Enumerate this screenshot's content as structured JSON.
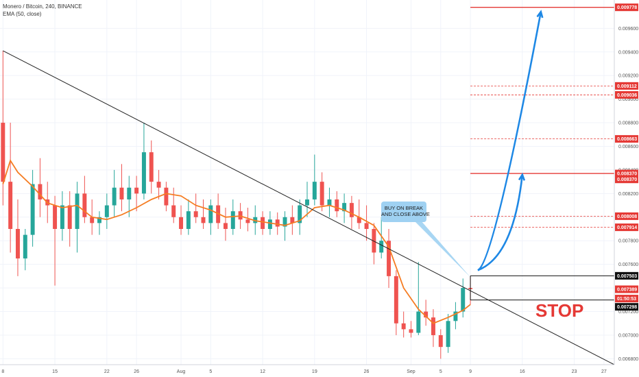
{
  "legend": {
    "symbol_line": "Monero / Bitcoin, 240, BINANCE",
    "indicator_line": "EMA (50, close)"
  },
  "annotations": {
    "callout_line1": "BUY ON BREAK",
    "callout_line2": "AND CLOSE ABOVE",
    "stop_label": "STOP"
  },
  "colors": {
    "candle_up": "#26a69a",
    "candle_down": "#ef5350",
    "ema": "#f57c22",
    "level_red": "#e53935",
    "arrow": "#1e88e5",
    "trendline": "#222222",
    "callout_bg": "#9fd1f2"
  },
  "chart_data": {
    "type": "candlestick",
    "symbol": "Monero / Bitcoin",
    "interval": "240",
    "exchange": "BINANCE",
    "indicator": "EMA (50, close)",
    "x_axis_ticks": [
      "8",
      "15",
      "22",
      "26",
      "Aug",
      "5",
      "12",
      "19",
      "26",
      "Sep",
      "5",
      "9",
      "16",
      "23",
      "27"
    ],
    "x_tick_days": [
      0,
      7,
      14,
      18,
      24,
      28,
      35,
      42,
      49,
      55,
      59,
      63,
      70,
      77,
      81
    ],
    "x_range_days": [
      -0.4,
      82.4
    ],
    "y_axis_ticks": [
      "0.006800",
      "0.007000",
      "0.007200",
      "0.007400",
      "0.007600",
      "0.007800",
      "0.008000",
      "0.008200",
      "0.008400",
      "0.008600",
      "0.008800",
      "0.009000",
      "0.009200",
      "0.009400",
      "0.009600"
    ],
    "ylim": [
      0.00675,
      0.00984
    ],
    "trendline": {
      "start": {
        "day": 0,
        "price": 0.00941
      },
      "end": {
        "day": 82.4,
        "price": 0.00675
      }
    },
    "ema_points": [
      {
        "day": 0,
        "price": 0.00828
      },
      {
        "day": 1,
        "price": 0.00848
      },
      {
        "day": 2,
        "price": 0.00838
      },
      {
        "day": 4,
        "price": 0.00826
      },
      {
        "day": 6,
        "price": 0.00812
      },
      {
        "day": 8,
        "price": 0.00808
      },
      {
        "day": 10,
        "price": 0.0081
      },
      {
        "day": 12,
        "price": 0.008
      },
      {
        "day": 14,
        "price": 0.00798
      },
      {
        "day": 16,
        "price": 0.00802
      },
      {
        "day": 18,
        "price": 0.00808
      },
      {
        "day": 20,
        "price": 0.00815
      },
      {
        "day": 22,
        "price": 0.0082
      },
      {
        "day": 24,
        "price": 0.00818
      },
      {
        "day": 26,
        "price": 0.0081
      },
      {
        "day": 28,
        "price": 0.00806
      },
      {
        "day": 30,
        "price": 0.008
      },
      {
        "day": 32,
        "price": 0.00801
      },
      {
        "day": 34,
        "price": 0.00797
      },
      {
        "day": 36,
        "price": 0.00795
      },
      {
        "day": 38,
        "price": 0.00793
      },
      {
        "day": 40,
        "price": 0.00797
      },
      {
        "day": 42,
        "price": 0.00808
      },
      {
        "day": 44,
        "price": 0.0081
      },
      {
        "day": 46,
        "price": 0.00806
      },
      {
        "day": 48,
        "price": 0.008
      },
      {
        "day": 50,
        "price": 0.00793
      },
      {
        "day": 52,
        "price": 0.00775
      },
      {
        "day": 54,
        "price": 0.0074
      },
      {
        "day": 56,
        "price": 0.00722
      },
      {
        "day": 58,
        "price": 0.0071
      },
      {
        "day": 60,
        "price": 0.00715
      },
      {
        "day": 62,
        "price": 0.00721
      },
      {
        "day": 63,
        "price": 0.00726
      }
    ],
    "candles_summary": "Daily OHLC reconstructed from the 240-minute chart visually",
    "candles": [
      {
        "day": 0,
        "o": 0.0088,
        "h": 0.00941,
        "l": 0.0081,
        "c": 0.0083
      },
      {
        "day": 1,
        "o": 0.0083,
        "h": 0.0088,
        "l": 0.0077,
        "c": 0.0079
      },
      {
        "day": 2,
        "o": 0.0079,
        "h": 0.00815,
        "l": 0.0075,
        "c": 0.00765
      },
      {
        "day": 3,
        "o": 0.00765,
        "h": 0.0079,
        "l": 0.00755,
        "c": 0.00785
      },
      {
        "day": 4,
        "o": 0.00785,
        "h": 0.0084,
        "l": 0.00775,
        "c": 0.00828
      },
      {
        "day": 5,
        "o": 0.00828,
        "h": 0.0085,
        "l": 0.008,
        "c": 0.00815
      },
      {
        "day": 6,
        "o": 0.00815,
        "h": 0.0083,
        "l": 0.00795,
        "c": 0.0081
      },
      {
        "day": 7,
        "o": 0.0081,
        "h": 0.00818,
        "l": 0.00742,
        "c": 0.0079
      },
      {
        "day": 8,
        "o": 0.0079,
        "h": 0.00822,
        "l": 0.0078,
        "c": 0.0081
      },
      {
        "day": 9,
        "o": 0.0081,
        "h": 0.00822,
        "l": 0.00775,
        "c": 0.0079
      },
      {
        "day": 10,
        "o": 0.0079,
        "h": 0.0083,
        "l": 0.0077,
        "c": 0.0082
      },
      {
        "day": 11,
        "o": 0.0082,
        "h": 0.00835,
        "l": 0.00795,
        "c": 0.008
      },
      {
        "day": 12,
        "o": 0.008,
        "h": 0.00815,
        "l": 0.00785,
        "c": 0.00795
      },
      {
        "day": 13,
        "o": 0.00795,
        "h": 0.00805,
        "l": 0.00785,
        "c": 0.008
      },
      {
        "day": 14,
        "o": 0.008,
        "h": 0.0082,
        "l": 0.0079,
        "c": 0.0081
      },
      {
        "day": 15,
        "o": 0.0081,
        "h": 0.0084,
        "l": 0.008,
        "c": 0.00825
      },
      {
        "day": 16,
        "o": 0.00825,
        "h": 0.00845,
        "l": 0.00805,
        "c": 0.00815
      },
      {
        "day": 17,
        "o": 0.00815,
        "h": 0.00835,
        "l": 0.008,
        "c": 0.00825
      },
      {
        "day": 18,
        "o": 0.00825,
        "h": 0.00835,
        "l": 0.00805,
        "c": 0.0082
      },
      {
        "day": 19,
        "o": 0.0082,
        "h": 0.0088,
        "l": 0.00815,
        "c": 0.00855
      },
      {
        "day": 20,
        "o": 0.00855,
        "h": 0.00865,
        "l": 0.0082,
        "c": 0.0083
      },
      {
        "day": 21,
        "o": 0.0083,
        "h": 0.0084,
        "l": 0.00815,
        "c": 0.00825
      },
      {
        "day": 22,
        "o": 0.00825,
        "h": 0.0083,
        "l": 0.00805,
        "c": 0.0081
      },
      {
        "day": 23,
        "o": 0.0081,
        "h": 0.00825,
        "l": 0.00795,
        "c": 0.008
      },
      {
        "day": 24,
        "o": 0.008,
        "h": 0.0081,
        "l": 0.00785,
        "c": 0.0079
      },
      {
        "day": 25,
        "o": 0.0079,
        "h": 0.00815,
        "l": 0.00785,
        "c": 0.00805
      },
      {
        "day": 26,
        "o": 0.00805,
        "h": 0.0082,
        "l": 0.00795,
        "c": 0.008
      },
      {
        "day": 27,
        "o": 0.008,
        "h": 0.00815,
        "l": 0.0079,
        "c": 0.00795
      },
      {
        "day": 28,
        "o": 0.00795,
        "h": 0.00815,
        "l": 0.00785,
        "c": 0.0081
      },
      {
        "day": 29,
        "o": 0.0081,
        "h": 0.0082,
        "l": 0.0079,
        "c": 0.00795
      },
      {
        "day": 30,
        "o": 0.00795,
        "h": 0.00808,
        "l": 0.0078,
        "c": 0.0079
      },
      {
        "day": 31,
        "o": 0.0079,
        "h": 0.00815,
        "l": 0.00785,
        "c": 0.00805
      },
      {
        "day": 32,
        "o": 0.00805,
        "h": 0.00812,
        "l": 0.0079,
        "c": 0.00798
      },
      {
        "day": 33,
        "o": 0.00798,
        "h": 0.00808,
        "l": 0.00788,
        "c": 0.00795
      },
      {
        "day": 34,
        "o": 0.00795,
        "h": 0.0081,
        "l": 0.00785,
        "c": 0.008
      },
      {
        "day": 35,
        "o": 0.008,
        "h": 0.00805,
        "l": 0.00785,
        "c": 0.0079
      },
      {
        "day": 36,
        "o": 0.0079,
        "h": 0.00805,
        "l": 0.00785,
        "c": 0.00798
      },
      {
        "day": 37,
        "o": 0.00798,
        "h": 0.00804,
        "l": 0.00785,
        "c": 0.00792
      },
      {
        "day": 38,
        "o": 0.00792,
        "h": 0.00805,
        "l": 0.0078,
        "c": 0.008
      },
      {
        "day": 39,
        "o": 0.008,
        "h": 0.0081,
        "l": 0.00785,
        "c": 0.00795
      },
      {
        "day": 40,
        "o": 0.00795,
        "h": 0.00815,
        "l": 0.00785,
        "c": 0.0081
      },
      {
        "day": 41,
        "o": 0.0081,
        "h": 0.0083,
        "l": 0.008,
        "c": 0.00815
      },
      {
        "day": 42,
        "o": 0.00815,
        "h": 0.00853,
        "l": 0.0081,
        "c": 0.0083
      },
      {
        "day": 43,
        "o": 0.0083,
        "h": 0.00838,
        "l": 0.00805,
        "c": 0.0081
      },
      {
        "day": 44,
        "o": 0.0081,
        "h": 0.00825,
        "l": 0.008,
        "c": 0.00815
      },
      {
        "day": 45,
        "o": 0.00815,
        "h": 0.00822,
        "l": 0.008,
        "c": 0.00805
      },
      {
        "day": 46,
        "o": 0.00805,
        "h": 0.0082,
        "l": 0.00795,
        "c": 0.00812
      },
      {
        "day": 47,
        "o": 0.00812,
        "h": 0.00818,
        "l": 0.0079,
        "c": 0.008
      },
      {
        "day": 48,
        "o": 0.008,
        "h": 0.00815,
        "l": 0.0079,
        "c": 0.00795
      },
      {
        "day": 49,
        "o": 0.00795,
        "h": 0.0081,
        "l": 0.0078,
        "c": 0.0079
      },
      {
        "day": 50,
        "o": 0.0079,
        "h": 0.00795,
        "l": 0.0076,
        "c": 0.0077
      },
      {
        "day": 51,
        "o": 0.0077,
        "h": 0.008,
        "l": 0.00765,
        "c": 0.0078
      },
      {
        "day": 52,
        "o": 0.0078,
        "h": 0.0079,
        "l": 0.0074,
        "c": 0.0075
      },
      {
        "day": 53,
        "o": 0.0075,
        "h": 0.00755,
        "l": 0.007,
        "c": 0.0071
      },
      {
        "day": 54,
        "o": 0.0071,
        "h": 0.0072,
        "l": 0.00698,
        "c": 0.00705
      },
      {
        "day": 55,
        "o": 0.00705,
        "h": 0.00712,
        "l": 0.00698,
        "c": 0.00702
      },
      {
        "day": 56,
        "o": 0.00702,
        "h": 0.00762,
        "l": 0.007,
        "c": 0.0072
      },
      {
        "day": 57,
        "o": 0.0072,
        "h": 0.0073,
        "l": 0.00708,
        "c": 0.00715
      },
      {
        "day": 58,
        "o": 0.00715,
        "h": 0.00722,
        "l": 0.0069,
        "c": 0.007
      },
      {
        "day": 59,
        "o": 0.007,
        "h": 0.00705,
        "l": 0.0068,
        "c": 0.0069
      },
      {
        "day": 60,
        "o": 0.0069,
        "h": 0.00718,
        "l": 0.00685,
        "c": 0.00712
      },
      {
        "day": 61,
        "o": 0.00712,
        "h": 0.00728,
        "l": 0.00705,
        "c": 0.0072
      },
      {
        "day": 62,
        "o": 0.0072,
        "h": 0.00748,
        "l": 0.00715,
        "c": 0.0074
      },
      {
        "day": 63,
        "o": 0.0074,
        "h": 0.0075,
        "l": 0.00726,
        "c": 0.00739
      }
    ],
    "price_levels": [
      {
        "label": "0.009778",
        "price": 0.009778,
        "style": "solid"
      },
      {
        "label": "0.009112",
        "price": 0.009112,
        "style": "dashed"
      },
      {
        "label": "0.009036",
        "price": 0.009036,
        "style": "dashed"
      },
      {
        "label": "0.008663",
        "price": 0.008663,
        "style": "dashed"
      },
      {
        "label": "0.008370",
        "price": 0.00837,
        "style": "solid"
      },
      {
        "label": "0.008008",
        "price": 0.008008,
        "style": "dashed"
      },
      {
        "label": "0.007914",
        "price": 0.007914,
        "style": "dashed"
      }
    ],
    "price_labels_right": [
      {
        "label": "0.009778",
        "price": 0.009778,
        "kind": "red"
      },
      {
        "label": "0.009112",
        "price": 0.009112,
        "kind": "red"
      },
      {
        "label": "0.009036",
        "price": 0.009036,
        "kind": "red"
      },
      {
        "label": "0.008663",
        "price": 0.008663,
        "kind": "red"
      },
      {
        "label": "0.008370",
        "price": 0.00837,
        "kind": "red"
      },
      {
        "label": "0.008370",
        "price": 0.00832,
        "kind": "red"
      },
      {
        "label": "0.008008",
        "price": 0.008008,
        "kind": "red"
      },
      {
        "label": "0.007914",
        "price": 0.007914,
        "kind": "red"
      },
      {
        "label": "0.007503",
        "price": 0.007503,
        "kind": "black"
      },
      {
        "label": "0.007389",
        "price": 0.007389,
        "kind": "red"
      },
      {
        "label": "01:50:53",
        "price": 0.00731,
        "kind": "red"
      },
      {
        "label": "0.007298",
        "price": 0.00724,
        "kind": "black"
      }
    ],
    "entry_box": {
      "start_day": 63,
      "end_day": 82.4,
      "price": 0.007503
    },
    "stop_box": {
      "start_day": 63,
      "end_day": 82.4,
      "price": 0.007298
    },
    "arrows": [
      {
        "from_day": 64,
        "from_price": 0.00755,
        "to_day": 70,
        "to_price": 0.00836
      },
      {
        "from_day": 64,
        "from_price": 0.00755,
        "to_day": 72.5,
        "to_price": 0.00974
      }
    ]
  }
}
